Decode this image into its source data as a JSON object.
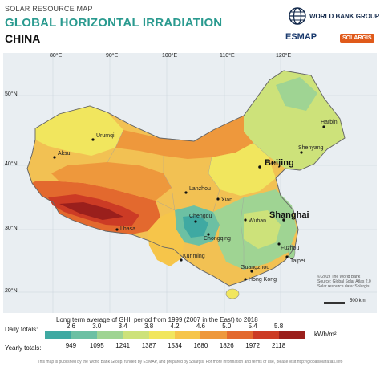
{
  "header": {
    "supertitle": "SOLAR RESOURCE MAP",
    "title": "GLOBAL HORIZONTAL IRRADIATION",
    "country": "CHINA",
    "org": "WORLD BANK GROUP",
    "partner1": "ESMAP",
    "partner2": "SOLARGIS"
  },
  "map": {
    "lon_ticks": [
      "80°E",
      "90°E",
      "100°E",
      "110°E",
      "120°E"
    ],
    "lat_ticks": [
      "50°N",
      "40°N",
      "30°N",
      "20°N"
    ],
    "cities": [
      "Harbin",
      "Shenyang",
      "Beijing",
      "Urumqi",
      "Aksu",
      "Lanzhou",
      "Xian",
      "Chengdu",
      "Chongqing",
      "Wuhan",
      "Shanghai",
      "Lhasa",
      "Kunming",
      "Fuzhou",
      "Taipei",
      "Guangzhou",
      "Hong Kong"
    ],
    "major_cities": [
      "Beijing",
      "Shanghai"
    ],
    "credits": [
      "© 2019 The World Bank",
      "Source: Global Solar Atlas 2.0",
      "Solar resource data: Solargis"
    ],
    "scale": "500 km"
  },
  "legend": {
    "caption": "Long term average of GHI, period from 1999 (2007 in the East) to 2018",
    "daily_label": "Daily totals:",
    "yearly_label": "Yearly totals:",
    "daily_ticks": [
      "2.6",
      "3.0",
      "3.4",
      "3.8",
      "4.2",
      "4.6",
      "5.0",
      "5.4",
      "5.8"
    ],
    "yearly_ticks": [
      "949",
      "1095",
      "1241",
      "1387",
      "1534",
      "1680",
      "1826",
      "1972",
      "2118"
    ],
    "unit": "kWh/m²",
    "colors": [
      "#3fa9a2",
      "#6cc0a3",
      "#9fd493",
      "#cde27a",
      "#f1e65e",
      "#f6c54a",
      "#ee983c",
      "#e3692e",
      "#cc3b25",
      "#9a1f1c"
    ]
  },
  "footer": "This map is published by the World Bank Group, funded by ESMAP, and prepared by Solargis. For more information and terms of use, please visit http://globalsolaratlas.info"
}
